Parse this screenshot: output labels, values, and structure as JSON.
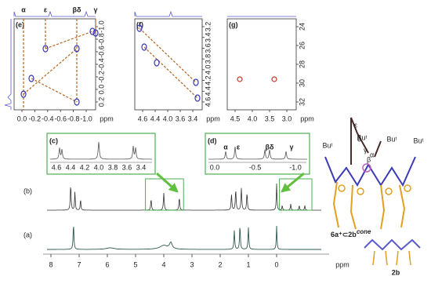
{
  "panel_e": {
    "label": "(e)",
    "peaks": [
      "α",
      "ε",
      "βδ",
      "γ"
    ],
    "right_ticks": [
      "-1.0",
      "-0.8",
      "-0.6",
      "-0.4",
      "-0.2",
      "0.0",
      "0.2"
    ],
    "bottom_ticks": [
      "0.0",
      "-0.2",
      "-0.4",
      "-0.6",
      "-0.8",
      "-1.0"
    ],
    "unit": "ppm"
  },
  "panel_f": {
    "label": "(f)",
    "right_ticks": [
      "3.2",
      "3.4",
      "3.6",
      "3.8",
      "4.0",
      "4.2",
      "4.4",
      "4.6"
    ],
    "bottom_ticks": [
      "4.6",
      "4.4",
      "4.0",
      "3.6",
      "3.4"
    ],
    "unit": "ppm"
  },
  "panel_g": {
    "label": "(g)",
    "right_ticks": [
      "24",
      "26",
      "28",
      "30",
      "32"
    ],
    "bottom_ticks": [
      "4.5",
      "4.0",
      "3.5",
      "3.0"
    ],
    "unit": "ppm"
  },
  "inset_c": {
    "label": "(c)",
    "ticks": [
      "4.6",
      "4.4",
      "4.2",
      "4.0",
      "3.8",
      "3.6",
      "3.4"
    ]
  },
  "inset_d": {
    "label": "(d)",
    "peaks": [
      "α",
      "ε",
      "βδ",
      "γ"
    ],
    "ticks": [
      "0.0",
      "-0.5",
      "-1.0"
    ]
  },
  "spectrum_b": {
    "label": "(b)"
  },
  "spectrum_a": {
    "label": "(a)"
  },
  "axis": {
    "ticks": [
      "8",
      "7",
      "6",
      "5",
      "4",
      "3",
      "2",
      "1",
      "0"
    ],
    "unit": "ppm"
  },
  "molecule_top": {
    "tert_butyl": [
      "Buᵗ",
      "Buᵗ",
      "Buᵗ",
      "Buᵗ"
    ],
    "greek": [
      "ε",
      "δ",
      "γ",
      "β",
      "α"
    ],
    "name": "6a⁺⊂2b",
    "superscript": "cone"
  },
  "molecule_bottom": {
    "name": "2b"
  }
}
